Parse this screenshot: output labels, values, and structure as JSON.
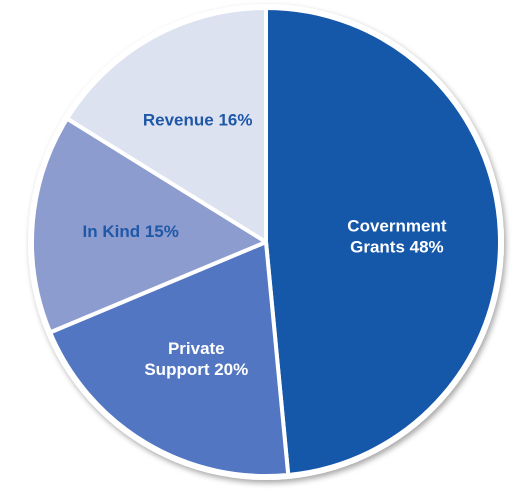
{
  "chart_data": {
    "type": "pie",
    "title": "",
    "slices": [
      {
        "label_lines": [
          "Covernment",
          "Grants 48%"
        ],
        "value": 48,
        "color": "#1557a9",
        "label_color": "#ffffff"
      },
      {
        "label_lines": [
          "Private",
          "Support 20%"
        ],
        "value": 20,
        "color": "#5276c1",
        "label_color": "#ffffff"
      },
      {
        "label_lines": [
          "In Kind 15%"
        ],
        "value": 15,
        "color": "#8c9ccf",
        "label_color": "#1f58a7"
      },
      {
        "label_lines": [
          "Revenue 16%"
        ],
        "value": 16,
        "color": "#dde2f1",
        "label_color": "#1f58a7"
      }
    ],
    "start": "12 o'clock",
    "direction": "clockwise",
    "legend": "none, labels on slices"
  }
}
